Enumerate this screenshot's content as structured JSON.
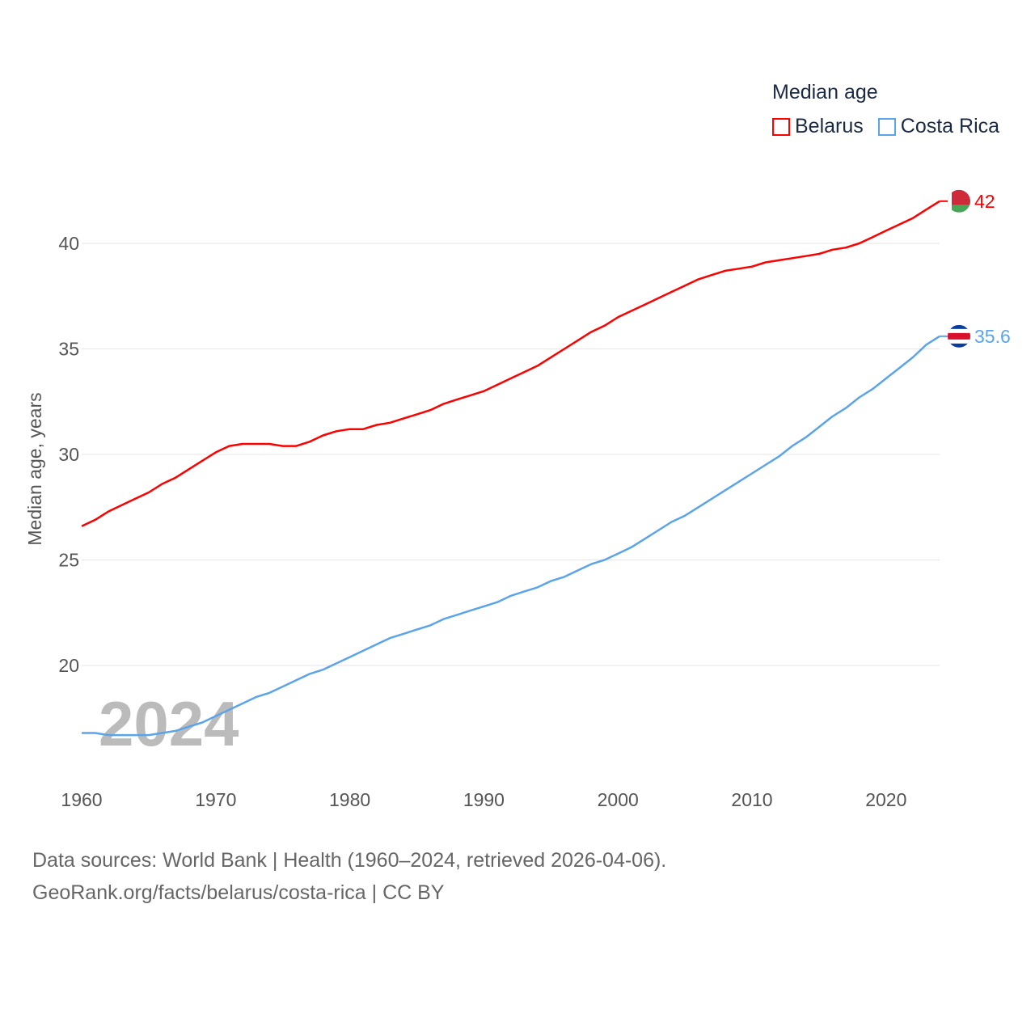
{
  "legend": {
    "title": "Median age",
    "items": [
      {
        "label": "Belarus",
        "color": "#ff0000"
      },
      {
        "label": "Costa Rica",
        "color": "#5ba4ea"
      }
    ]
  },
  "year_watermark": "2024",
  "footer": {
    "line1": "Data sources: World Bank | Health (1960–2024, retrieved 2026-04-06).",
    "line2": "GeoRank.org/facts/belarus/costa-rica | CC BY"
  },
  "chart_data": {
    "type": "line",
    "title": "Median age",
    "xlabel": "",
    "ylabel": "Median age, years",
    "x_ticks": [
      "1960",
      "1970",
      "1980",
      "1990",
      "2000",
      "2010",
      "2020"
    ],
    "y_ticks": [
      "20",
      "25",
      "30",
      "35",
      "40"
    ],
    "xlim": [
      1960,
      2024
    ],
    "grid": true,
    "legend_position": "top-right",
    "x": [
      1960,
      1961,
      1962,
      1963,
      1964,
      1965,
      1966,
      1967,
      1968,
      1969,
      1970,
      1971,
      1972,
      1973,
      1974,
      1975,
      1976,
      1977,
      1978,
      1979,
      1980,
      1981,
      1982,
      1983,
      1984,
      1985,
      1986,
      1987,
      1988,
      1989,
      1990,
      1991,
      1992,
      1993,
      1994,
      1995,
      1996,
      1997,
      1998,
      1999,
      2000,
      2001,
      2002,
      2003,
      2004,
      2005,
      2006,
      2007,
      2008,
      2009,
      2010,
      2011,
      2012,
      2013,
      2014,
      2015,
      2016,
      2017,
      2018,
      2019,
      2020,
      2021,
      2022,
      2023,
      2024
    ],
    "series": [
      {
        "name": "Belarus",
        "color": "#ff0000",
        "end_label": "42",
        "values": [
          26.6,
          26.9,
          27.3,
          27.6,
          27.9,
          28.2,
          28.6,
          28.9,
          29.3,
          29.7,
          30.1,
          30.4,
          30.5,
          30.5,
          30.5,
          30.4,
          30.4,
          30.6,
          30.9,
          31.1,
          31.2,
          31.2,
          31.4,
          31.5,
          31.7,
          31.9,
          32.1,
          32.4,
          32.6,
          32.8,
          33.0,
          33.3,
          33.6,
          33.9,
          34.2,
          34.6,
          35.0,
          35.4,
          35.8,
          36.1,
          36.5,
          36.8,
          37.1,
          37.4,
          37.7,
          38.0,
          38.3,
          38.5,
          38.7,
          38.8,
          38.9,
          39.1,
          39.2,
          39.3,
          39.4,
          39.5,
          39.7,
          39.8,
          40.0,
          40.3,
          40.6,
          40.9,
          41.2,
          41.6,
          42.0
        ]
      },
      {
        "name": "Costa Rica",
        "color": "#5ba4ea",
        "end_label": "35.6",
        "values": [
          16.8,
          16.8,
          16.7,
          16.7,
          16.7,
          16.7,
          16.8,
          16.9,
          17.1,
          17.3,
          17.6,
          17.9,
          18.2,
          18.5,
          18.7,
          19.0,
          19.3,
          19.6,
          19.8,
          20.1,
          20.4,
          20.7,
          21.0,
          21.3,
          21.5,
          21.7,
          21.9,
          22.2,
          22.4,
          22.6,
          22.8,
          23.0,
          23.3,
          23.5,
          23.7,
          24.0,
          24.2,
          24.5,
          24.8,
          25.0,
          25.3,
          25.6,
          26.0,
          26.4,
          26.8,
          27.1,
          27.5,
          27.9,
          28.3,
          28.7,
          29.1,
          29.5,
          29.9,
          30.4,
          30.8,
          31.3,
          31.8,
          32.2,
          32.7,
          33.1,
          33.6,
          34.1,
          34.6,
          35.2,
          35.6
        ]
      }
    ]
  }
}
